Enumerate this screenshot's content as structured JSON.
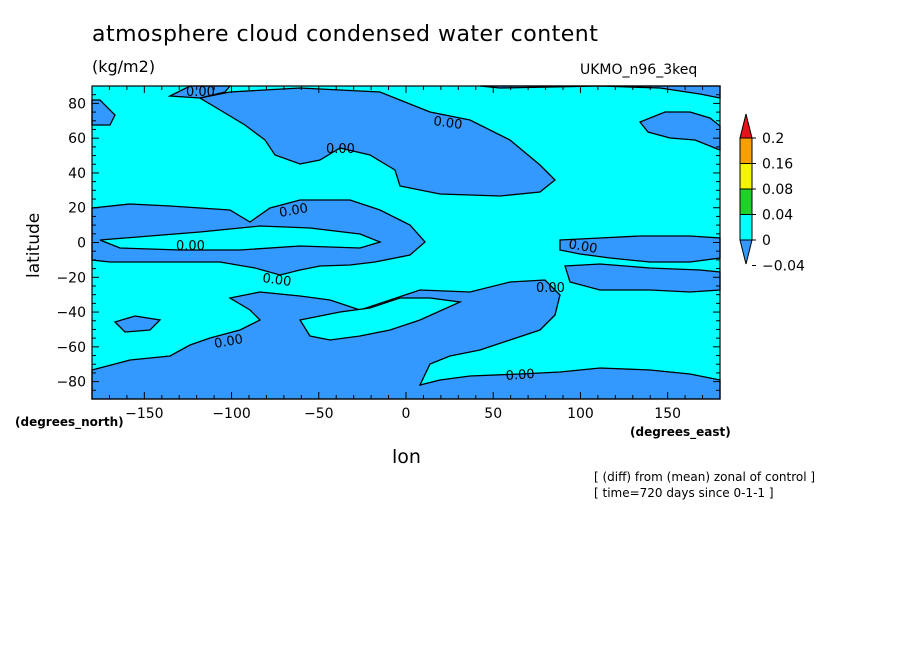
{
  "chart_data": {
    "type": "heatmap",
    "title": "atmosphere cloud condensed water content",
    "units": "(kg/m2)",
    "model": "UKMO_n96_3keq",
    "xlabel": "lon",
    "ylabel": "latitude",
    "x_unit_label": "(degrees_east)",
    "y_unit_label": "(degrees_north)",
    "xlim": [
      -180,
      180
    ],
    "ylim": [
      -90,
      90
    ],
    "x_ticks": [
      -150,
      -100,
      -50,
      0,
      50,
      100,
      150
    ],
    "y_ticks": [
      -80,
      -60,
      -40,
      -20,
      0,
      20,
      40,
      60,
      80
    ],
    "colorbar": {
      "levels": [
        "0.2",
        "0.16",
        "0.08",
        "0.04",
        "0",
        "-0.04"
      ],
      "colors": [
        "#e8121a",
        "#f7a000",
        "#f5f500",
        "#22d02a",
        "#00ffff",
        "#3399ff"
      ]
    },
    "contour_labels": [
      "0.00",
      "0.00",
      "0.00",
      "0.00",
      "0.00",
      "0.00",
      "0.00",
      "0.00",
      "0.00",
      "0.00"
    ],
    "notes": [
      "[ (diff) from (mean) zonal of control ]",
      "[ time=720 days since 0-1-1 ]"
    ]
  }
}
